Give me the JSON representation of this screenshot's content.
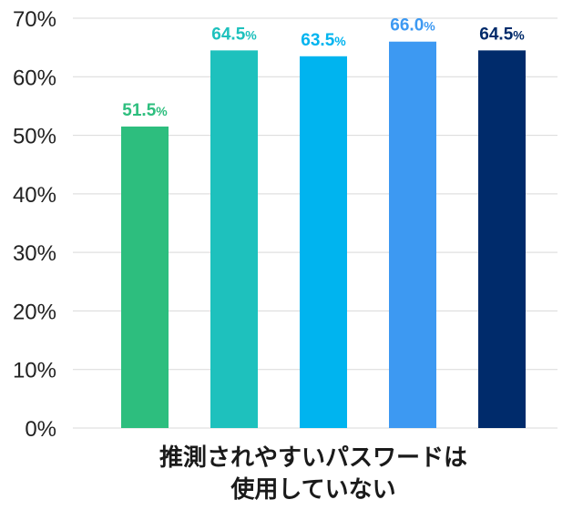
{
  "chart_data": {
    "type": "bar",
    "title": "",
    "ylabel": "",
    "ylim": [
      0,
      70
    ],
    "yticks": [
      "0%",
      "10%",
      "20%",
      "30%",
      "40%",
      "50%",
      "60%",
      "70%"
    ],
    "ytick_values": [
      0,
      10,
      20,
      30,
      40,
      50,
      60,
      70
    ],
    "grid": true,
    "category_label_lines": [
      "推測されやすいパスワードは",
      "使用していない"
    ],
    "values": [
      51.5,
      64.5,
      63.5,
      66.0,
      64.5
    ],
    "value_labels": [
      "51.5",
      "64.5",
      "63.5",
      "66.0",
      "64.5"
    ],
    "value_unit": "%",
    "colors": [
      "#2dbe7e",
      "#1ec1bd",
      "#00b4ef",
      "#3d99f2",
      "#002b6b"
    ]
  }
}
